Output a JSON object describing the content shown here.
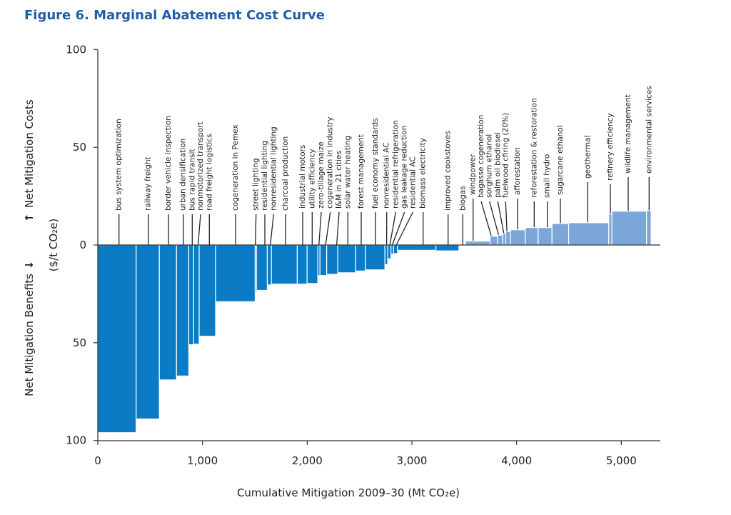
{
  "chart_data": {
    "type": "bar",
    "subtype": "marginal-abatement-cost-curve",
    "title": "Figure 6. Marginal Abatement Cost Curve",
    "xlabel": "Cumulative Mitigation 2009–30 (Mt CO₂e)",
    "ylabel_positive": "Net Mitigation Costs",
    "ylabel_negative": "Net Mitigation Benefits",
    "ylabel_units": "($/t CO₂e)",
    "arrow_up": "↑",
    "arrow_down": "↓",
    "xlim": [
      0,
      5300
    ],
    "ylim": [
      -100,
      100
    ],
    "x_ticks": [
      0,
      1000,
      2000,
      3000,
      4000,
      5000
    ],
    "x_tick_labels": [
      "0",
      "1,000",
      "2,000",
      "3,000",
      "4,000",
      "5,000"
    ],
    "y_ticks": [
      100,
      50,
      0,
      -50,
      -100
    ],
    "y_tick_labels": [
      "100",
      "50",
      "0",
      "50",
      "100"
    ],
    "grid": false,
    "colors": {
      "negative": "#0b7bc5",
      "positive": "#7ba6da",
      "title": "#1f5fa8"
    },
    "measures": [
      {
        "name": "bus system optimization",
        "cumulative_mt": 366,
        "cost": -96
      },
      {
        "name": "railway freight",
        "cumulative_mt": 588,
        "cost": -89
      },
      {
        "name": "border vehicle inspection",
        "cumulative_mt": 752,
        "cost": -69
      },
      {
        "name": "urban densification",
        "cumulative_mt": 869,
        "cost": -67
      },
      {
        "name": "bus rapid transit",
        "cumulative_mt": 915,
        "cost": -51
      },
      {
        "name": "nonmotorized transport",
        "cumulative_mt": 968,
        "cost": -50.7
      },
      {
        "name": "road freight logistics",
        "cumulative_mt": 1125,
        "cost": -46.7
      },
      {
        "name": "cogeneration in Pemex",
        "cumulative_mt": 1503,
        "cost": -29
      },
      {
        "name": "street lighting",
        "cumulative_mt": 1515,
        "cost": -24.8
      },
      {
        "name": "residential lighting",
        "cumulative_mt": 1619,
        "cost": -23.2
      },
      {
        "name": "nonresidential lighting",
        "cumulative_mt": 1658,
        "cost": -20.4
      },
      {
        "name": "charcoal production",
        "cumulative_mt": 1905,
        "cost": -20
      },
      {
        "name": "industrial motors",
        "cumulative_mt": 1999,
        "cost": -20
      },
      {
        "name": "utility efficiency",
        "cumulative_mt": 2101,
        "cost": -19.7
      },
      {
        "name": "zero-tillage maize",
        "cumulative_mt": 2122,
        "cost": -15.7
      },
      {
        "name": "cogeneration in industry",
        "cumulative_mt": 2186,
        "cost": -15.6
      },
      {
        "name": "I&M in 21 cities",
        "cumulative_mt": 2292,
        "cost": -15
      },
      {
        "name": "solar water heating",
        "cumulative_mt": 2463,
        "cost": -14.2
      },
      {
        "name": "forest management",
        "cumulative_mt": 2556,
        "cost": -13.3
      },
      {
        "name": "fuel economy standards",
        "cumulative_mt": 2742,
        "cost": -12.7
      },
      {
        "name": "nonresidential AC",
        "cumulative_mt": 2769,
        "cost": -10
      },
      {
        "name": "residential refrigeration",
        "cumulative_mt": 2800,
        "cost": -7
      },
      {
        "name": "gas leakage reduction",
        "cumulative_mt": 2824,
        "cost": -4.7
      },
      {
        "name": "residential AC",
        "cumulative_mt": 2863,
        "cost": -4.4
      },
      {
        "name": "biomass electricity",
        "cumulative_mt": 3229,
        "cost": -2.7
      },
      {
        "name": "improved cookstoves",
        "cumulative_mt": 3449,
        "cost": -3
      },
      {
        "name": "biogas",
        "cumulative_mt": 3511,
        "cost": 0
      },
      {
        "name": "windpower",
        "cumulative_mt": 3747,
        "cost": 2
      },
      {
        "name": "bagasse cogeneration",
        "cumulative_mt": 3817,
        "cost": 4.5
      },
      {
        "name": "sorghum ethanol",
        "cumulative_mt": 3867,
        "cost": 5
      },
      {
        "name": "palm oil biodiesel",
        "cumulative_mt": 3897,
        "cost": 6
      },
      {
        "name": "fuelwood cfiring (20%)",
        "cumulative_mt": 3942,
        "cost": 6.9
      },
      {
        "name": "afforestation",
        "cumulative_mt": 4083,
        "cost": 7.8
      },
      {
        "name": "reforestation & restoration",
        "cumulative_mt": 4206,
        "cost": 8.9
      },
      {
        "name": "small hydro",
        "cumulative_mt": 4338,
        "cost": 8.9
      },
      {
        "name": "sugarcane ethanol",
        "cumulative_mt": 4497,
        "cost": 11
      },
      {
        "name": "geothermal",
        "cumulative_mt": 4880,
        "cost": 11.4
      },
      {
        "name": "refinery efficiency",
        "cumulative_mt": 4910,
        "cost": 15.8
      },
      {
        "name": "wildlife management",
        "cumulative_mt": 5241,
        "cost": 17.3
      },
      {
        "name": "environmental services",
        "cumulative_mt": 5285,
        "cost": 17.6
      }
    ]
  }
}
